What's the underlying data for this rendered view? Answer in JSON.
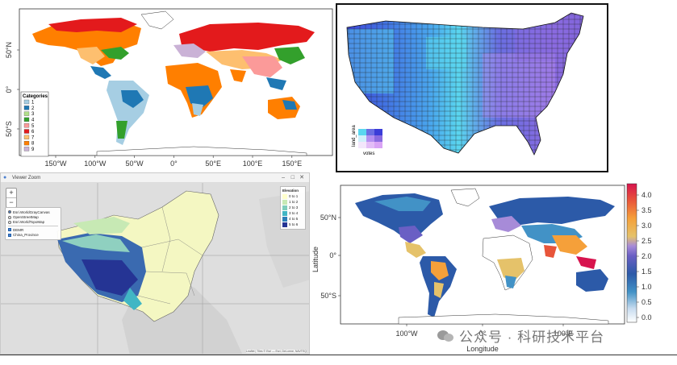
{
  "panel1": {
    "legend_title": "Categories",
    "legend": [
      {
        "label": "1",
        "color": "#a6cee3"
      },
      {
        "label": "2",
        "color": "#1f78b4"
      },
      {
        "label": "3",
        "color": "#b2df8a"
      },
      {
        "label": "4",
        "color": "#33a02c"
      },
      {
        "label": "5",
        "color": "#fb9a99"
      },
      {
        "label": "6",
        "color": "#e31a1c"
      },
      {
        "label": "7",
        "color": "#fdbf6f"
      },
      {
        "label": "8",
        "color": "#ff7f00"
      },
      {
        "label": "9",
        "color": "#cab2d6"
      }
    ],
    "x_ticks": [
      "150°W",
      "100°W",
      "50°W",
      "0°",
      "50°E",
      "100°E",
      "150°E"
    ],
    "y_ticks": [
      "50°N",
      "0°",
      "50°S"
    ]
  },
  "panel2": {
    "legend_y_label": "land_area",
    "legend_x_label": "votes",
    "colors": [
      "#3b3dd8",
      "#5ad6ef",
      "#8a6be0",
      "#b48ff0",
      "#d9a3f5"
    ]
  },
  "panel3": {
    "window_title": "Viewer Zoom",
    "zoom_in": "+",
    "zoom_out": "−",
    "basemaps": [
      "Esri.WorldGrayCanvas",
      "OpenStreetMap",
      "Esri.WorldTopoMap"
    ],
    "overlays": [
      "DEMR",
      "China_Province"
    ],
    "legend_title": "Elevation",
    "legend": [
      {
        "label": "0 to 1",
        "color": "#ffffcc"
      },
      {
        "label": "1 to 2",
        "color": "#c7e9b4"
      },
      {
        "label": "2 to 3",
        "color": "#7fcdbb"
      },
      {
        "label": "3 to 4",
        "color": "#41b6c4"
      },
      {
        "label": "4 to 5",
        "color": "#2c7fb8"
      },
      {
        "label": "5 to 6",
        "color": "#253494"
      }
    ],
    "attribution": "Leaflet | Tiles © Esri — Esri, DeLorme, NAVTEQ"
  },
  "panel4": {
    "ylabel": "Latitude",
    "xlabel": "Longitude",
    "y_ticks": [
      "50°N",
      "0°",
      "50°S"
    ],
    "x_ticks": [
      "100°W",
      "0°",
      "100°E"
    ],
    "colorbar_ticks": [
      "4.0",
      "3.5",
      "3.0",
      "2.5",
      "2.0",
      "1.5",
      "1.0",
      "0.5",
      "0.0"
    ]
  },
  "watermark": "公众号 · 科研技术平台"
}
